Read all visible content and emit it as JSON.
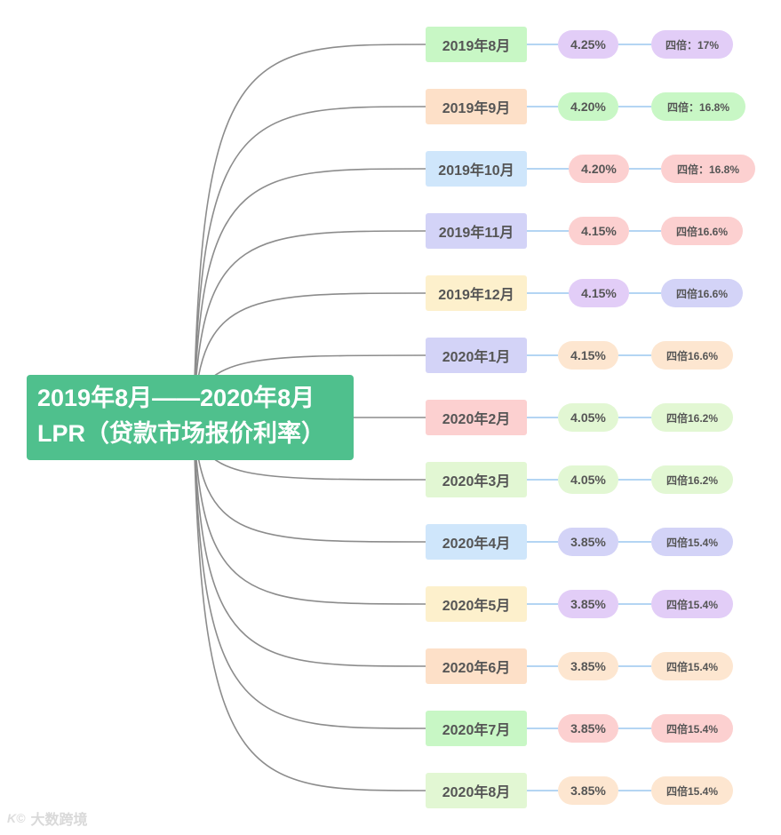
{
  "root": {
    "line1": "2019年8月——2020年8月",
    "line2": "LPR（贷款市场报价利率）",
    "color": "#4fc08d"
  },
  "items": [
    {
      "month": "2019年8月",
      "rate": "4.25%",
      "multiple": "四倍：17%",
      "month_color": "#c8f7c5",
      "rate_color": "#e2cdf7",
      "multiple_color": "#e2cdf7"
    },
    {
      "month": "2019年9月",
      "rate": "4.20%",
      "multiple": "四倍：16.8%",
      "month_color": "#fde0c8",
      "rate_color": "#c8f7c5",
      "multiple_color": "#c8f7c5"
    },
    {
      "month": "2019年10月",
      "rate": "4.20%",
      "multiple": "四倍：16.8%",
      "month_color": "#cfe6fb",
      "rate_color": "#fcd0d0",
      "multiple_color": "#fcd0d0"
    },
    {
      "month": "2019年11月",
      "rate": "4.15%",
      "multiple": "四倍16.6%",
      "month_color": "#d3d3f7",
      "rate_color": "#fcd0d0",
      "multiple_color": "#fcd0d0"
    },
    {
      "month": "2019年12月",
      "rate": "4.15%",
      "multiple": "四倍16.6%",
      "month_color": "#fdf0cc",
      "rate_color": "#e2cdf7",
      "multiple_color": "#d3d3f7"
    },
    {
      "month": "2020年1月",
      "rate": "4.15%",
      "multiple": "四倍16.6%",
      "month_color": "#d3d3f7",
      "rate_color": "#fde6d0",
      "multiple_color": "#fde6d0"
    },
    {
      "month": "2020年2月",
      "rate": "4.05%",
      "multiple": "四倍16.2%",
      "month_color": "#fcd0d0",
      "rate_color": "#e2f7d3",
      "multiple_color": "#e2f7d3"
    },
    {
      "month": "2020年3月",
      "rate": "4.05%",
      "multiple": "四倍16.2%",
      "month_color": "#e2f7d3",
      "rate_color": "#e2f7d3",
      "multiple_color": "#e2f7d3"
    },
    {
      "month": "2020年4月",
      "rate": "3.85%",
      "multiple": "四倍15.4%",
      "month_color": "#cfe6fb",
      "rate_color": "#d3d3f7",
      "multiple_color": "#d3d3f7"
    },
    {
      "month": "2020年5月",
      "rate": "3.85%",
      "multiple": "四倍15.4%",
      "month_color": "#fdf0cc",
      "rate_color": "#e2cdf7",
      "multiple_color": "#e2cdf7"
    },
    {
      "month": "2020年6月",
      "rate": "3.85%",
      "multiple": "四倍15.4%",
      "month_color": "#fde0c8",
      "rate_color": "#fde6d0",
      "multiple_color": "#fde6d0"
    },
    {
      "month": "2020年7月",
      "rate": "3.85%",
      "multiple": "四倍15.4%",
      "month_color": "#c8f7c5",
      "rate_color": "#fcd0d0",
      "multiple_color": "#fcd0d0"
    },
    {
      "month": "2020年8月",
      "rate": "3.85%",
      "multiple": "四倍15.4%",
      "month_color": "#e2f7d3",
      "rate_color": "#fde6d0",
      "multiple_color": "#fde6d0"
    }
  ],
  "colors": {
    "branch_line": "#8c8c8c",
    "connector": "#9cc7ef",
    "text": "#555555"
  },
  "watermark": {
    "logo": "K©",
    "text": "大数跨境"
  }
}
